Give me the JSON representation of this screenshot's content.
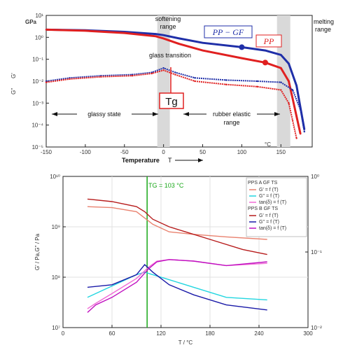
{
  "chart_data": [
    {
      "type": "line",
      "log_y": true,
      "xlim": [
        -150,
        190
      ],
      "ylim_exp": [
        -5,
        1
      ],
      "x_ticks": [
        -150,
        -100,
        -50,
        0,
        50,
        100,
        150
      ],
      "y_tick_labels": [
        "10¹",
        "10⁰",
        "10⁻¹",
        "10⁻²",
        "10⁻³",
        "10⁻⁴",
        "10⁻⁵"
      ],
      "y_unit": "GPa",
      "xlabel": "Temperature",
      "xunit_T": "T",
      "xunit_C": "°C",
      "y_axis_symbols": [
        "G'",
        "G''"
      ],
      "shaded_regions": [
        [
          -8,
          8
        ],
        [
          145,
          162
        ]
      ],
      "annotations": {
        "softening": [
          "softening",
          "range"
        ],
        "melting": [
          "melting",
          "range"
        ],
        "glass_transition": "glass transition",
        "tg": "Tg",
        "glassy_state": "glassy state",
        "rubber": [
          "rubber elastic",
          "range"
        ]
      },
      "series": [
        {
          "name": "PP − GF",
          "color": "#1f2fa8",
          "kind": "storage",
          "x": [
            -150,
            -100,
            -50,
            -10,
            0,
            20,
            50,
            100,
            130,
            150,
            160,
            170,
            175,
            180
          ],
          "log_y": [
            0.35,
            0.32,
            0.25,
            0.15,
            0.1,
            -0.05,
            -0.25,
            -0.45,
            -0.6,
            -0.8,
            -1.2,
            -2.2,
            -3.2,
            -4.2
          ]
        },
        {
          "name": "PP",
          "color": "#e02020",
          "kind": "storage",
          "x": [
            -150,
            -100,
            -50,
            -10,
            0,
            20,
            50,
            100,
            130,
            150,
            160,
            165,
            170,
            175
          ],
          "log_y": [
            0.35,
            0.3,
            0.2,
            0.05,
            -0.05,
            -0.3,
            -0.6,
            -0.95,
            -1.15,
            -1.4,
            -2.0,
            -2.8,
            -3.6,
            -4.4
          ]
        },
        {
          "kind": "loss",
          "color": "#1f2fa8",
          "x": [
            -150,
            -120,
            -80,
            -40,
            -15,
            0,
            15,
            40,
            80,
            120,
            150,
            165,
            175,
            180
          ],
          "log_y": [
            -2.0,
            -1.85,
            -1.75,
            -1.7,
            -1.6,
            -1.4,
            -1.6,
            -1.85,
            -1.95,
            -2.0,
            -2.05,
            -2.4,
            -3.3,
            -4.3
          ]
        },
        {
          "kind": "loss",
          "color": "#e02020",
          "x": [
            -150,
            -120,
            -80,
            -40,
            -15,
            0,
            15,
            40,
            80,
            120,
            150,
            160,
            165,
            170
          ],
          "log_y": [
            -2.05,
            -1.9,
            -1.8,
            -1.75,
            -1.65,
            -1.5,
            -1.7,
            -2.0,
            -2.15,
            -2.25,
            -2.4,
            -3.0,
            -3.8,
            -4.6
          ]
        }
      ]
    },
    {
      "type": "line",
      "log_y": true,
      "title": "TG = 103 °C",
      "xlim": [
        0,
        300
      ],
      "x_ticks": [
        0,
        60,
        120,
        180,
        240,
        300
      ],
      "xlabel": "T / °C",
      "ylabel": "G' / Pa,G'' / Pa",
      "y_left_exp": [
        7,
        10
      ],
      "y_left_tick_labels": [
        "10⁷",
        "10⁸",
        "10⁹",
        "10¹⁰"
      ],
      "y_right_exp": [
        -2,
        0
      ],
      "y_right_tick_labels": [
        "10⁻²",
        "10⁻¹",
        "10⁰"
      ],
      "tg_line_x": 103,
      "legend": {
        "group_a_title": "PPS A GF TS",
        "group_a": [
          "G' = f (T)",
          "G'' = f (T)",
          "tan(δ) = f (T)"
        ],
        "group_b_title": "PPS B GF TS",
        "group_b": [
          "G' = f (T)",
          "G'' = f (T)",
          "tan(δ) = f (T)"
        ]
      },
      "series": [
        {
          "name": "PPS A GF TS G' = f (T)",
          "color": "#e9826f",
          "axis": "left",
          "x": [
            30,
            60,
            90,
            110,
            130,
            160,
            200,
            250
          ],
          "log_y": [
            9.4,
            9.38,
            9.3,
            9.05,
            8.9,
            8.85,
            8.8,
            8.75
          ]
        },
        {
          "name": "PPS A GF TS G'' = f (T)",
          "color": "#22d6e0",
          "axis": "left",
          "x": [
            30,
            50,
            70,
            90,
            100,
            110,
            130,
            160,
            200,
            250
          ],
          "log_y": [
            7.6,
            7.75,
            7.9,
            8.05,
            8.1,
            8.05,
            7.95,
            7.8,
            7.6,
            7.55
          ]
        },
        {
          "name": "PPS A GF TS tan(δ) = f (T)",
          "color": "#f06ad6",
          "axis": "right",
          "x": [
            30,
            40,
            60,
            90,
            105,
            115,
            130,
            160,
            200,
            250
          ],
          "log_y": [
            -1.75,
            -1.68,
            -1.55,
            -1.35,
            -1.2,
            -1.12,
            -1.1,
            -1.12,
            -1.18,
            -1.15
          ]
        },
        {
          "name": "PPS B GF TS G' = f (T)",
          "color": "#b71c1c",
          "axis": "left",
          "x": [
            30,
            60,
            90,
            100,
            110,
            130,
            150,
            180,
            220,
            250
          ],
          "log_y": [
            9.55,
            9.5,
            9.4,
            9.3,
            9.15,
            9.0,
            8.9,
            8.75,
            8.55,
            8.45
          ]
        },
        {
          "name": "PPS B GF TS G'' = f (T)",
          "color": "#1a1aa8",
          "axis": "left",
          "x": [
            30,
            60,
            90,
            100,
            110,
            130,
            160,
            200,
            250
          ],
          "log_y": [
            7.8,
            7.85,
            8.05,
            8.25,
            8.1,
            7.85,
            7.65,
            7.45,
            7.35
          ]
        },
        {
          "name": "PPS B GF TS tan(δ) = f (T)",
          "color": "#c010c0",
          "axis": "right",
          "x": [
            30,
            40,
            60,
            90,
            105,
            115,
            130,
            160,
            200,
            250
          ],
          "log_y": [
            -1.8,
            -1.7,
            -1.6,
            -1.4,
            -1.22,
            -1.13,
            -1.1,
            -1.12,
            -1.18,
            -1.13
          ]
        }
      ]
    }
  ]
}
